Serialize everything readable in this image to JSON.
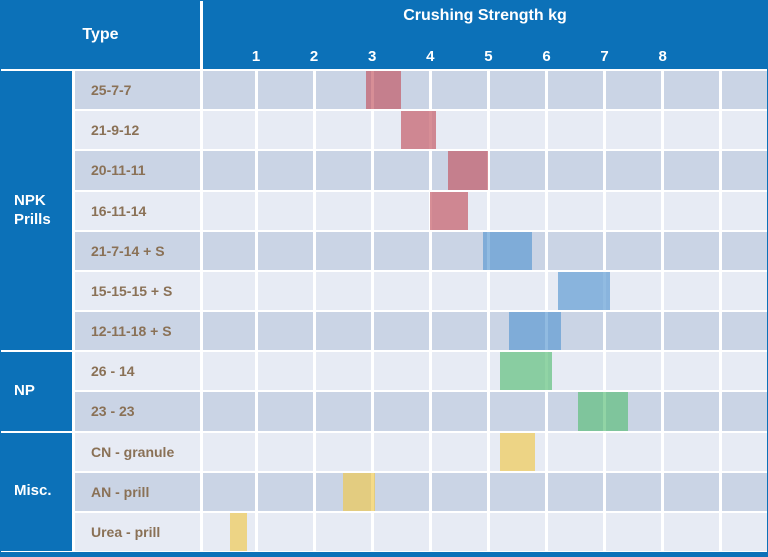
{
  "header": {
    "type_label": "Type"
  },
  "colors": {
    "header_blue": "#0c71b8",
    "row_dark": "#cad4e5",
    "row_light": "#e7ebf4",
    "label_text": "#8a7156",
    "grid_white": "#ffffff",
    "palette": {
      "red": "rgba(194,82,94,0.65)",
      "blue": "rgba(86,151,209,0.65)",
      "green": "rgba(86,189,116,0.65)",
      "yellow": "rgba(240,200,73,0.65)"
    }
  },
  "chart_data": {
    "type": "bar",
    "orientation": "horizontal-range",
    "title": "Crushing Strength kg",
    "unit": "kg",
    "y_axis_label": "Type",
    "x_axis": {
      "ticks": [
        1,
        2,
        3,
        4,
        5,
        6,
        7,
        8
      ],
      "range": [
        0,
        9.7
      ],
      "gridlines_at": [
        1,
        2,
        3,
        4,
        5,
        6,
        7,
        8,
        9
      ]
    },
    "groups": [
      {
        "label": "NPK Prills",
        "rows": 7
      },
      {
        "label": "NP",
        "rows": 2
      },
      {
        "label": "Misc.",
        "rows": 3
      }
    ],
    "rows": [
      {
        "group": "NPK Prills",
        "label": "25-7-7",
        "min": 2.9,
        "max": 3.5,
        "color": "red"
      },
      {
        "group": "NPK Prills",
        "label": "21-9-12",
        "min": 3.5,
        "max": 4.1,
        "color": "red"
      },
      {
        "group": "NPK Prills",
        "label": "20-11-11",
        "min": 4.3,
        "max": 5.0,
        "color": "red"
      },
      {
        "group": "NPK Prills",
        "label": "16-11-14",
        "min": 4.0,
        "max": 4.65,
        "color": "red"
      },
      {
        "group": "NPK Prills",
        "label": "21-7-14 + S",
        "min": 4.9,
        "max": 5.75,
        "color": "blue"
      },
      {
        "group": "NPK Prills",
        "label": "15-15-15 + S",
        "min": 6.2,
        "max": 7.1,
        "color": "blue"
      },
      {
        "group": "NPK Prills",
        "label": "12-11-18 + S",
        "min": 5.35,
        "max": 6.25,
        "color": "blue"
      },
      {
        "group": "NP",
        "label": "26 - 14",
        "min": 5.2,
        "max": 6.1,
        "color": "green"
      },
      {
        "group": "NP",
        "label": "23 - 23",
        "min": 6.55,
        "max": 7.4,
        "color": "green"
      },
      {
        "group": "Misc.",
        "label": "CN - granule",
        "min": 5.2,
        "max": 5.8,
        "color": "yellow"
      },
      {
        "group": "Misc.",
        "label": "AN - prill",
        "min": 2.5,
        "max": 3.05,
        "color": "yellow"
      },
      {
        "group": "Misc.",
        "label": "Urea - prill",
        "min": 0.55,
        "max": 0.85,
        "color": "yellow"
      }
    ]
  }
}
